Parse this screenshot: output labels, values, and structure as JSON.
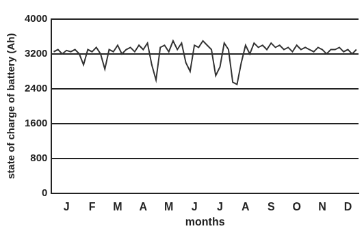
{
  "chart_data": {
    "type": "line",
    "x_label": "months",
    "y_label": "state of charge of battery (Ah)",
    "categories": [
      null,
      null,
      null,
      "J",
      null,
      null,
      null,
      null,
      null,
      "F",
      null,
      null,
      null,
      null,
      null,
      "M",
      null,
      null,
      null,
      null,
      null,
      "A",
      null,
      null,
      null,
      null,
      null,
      "M",
      null,
      null,
      null,
      null,
      null,
      "J",
      null,
      null,
      null,
      null,
      null,
      "J",
      null,
      null,
      null,
      null,
      null,
      "A",
      null,
      null,
      null,
      null,
      null,
      "S",
      null,
      null,
      null,
      null,
      null,
      "O",
      null,
      null,
      null,
      null,
      null,
      "N",
      null,
      null,
      null,
      null,
      null,
      "D",
      null,
      null
    ],
    "values": [
      3250,
      3300,
      3200,
      3280,
      3250,
      3300,
      3200,
      2950,
      3300,
      3250,
      3350,
      3200,
      2850,
      3300,
      3250,
      3400,
      3200,
      3300,
      3350,
      3250,
      3400,
      3300,
      3450,
      2950,
      2600,
      3350,
      3400,
      3250,
      3500,
      3300,
      3450,
      3000,
      2800,
      3400,
      3350,
      3500,
      3400,
      3300,
      2700,
      2900,
      3450,
      3300,
      2550,
      2500,
      3000,
      3400,
      3200,
      3450,
      3350,
      3400,
      3300,
      3450,
      3350,
      3400,
      3300,
      3350,
      3250,
      3400,
      3300,
      3350,
      3300,
      3250,
      3350,
      3300,
      3200,
      3300,
      3300,
      3350,
      3250,
      3300,
      3200,
      3300
    ],
    "color": "#333333",
    "ylim": [
      0,
      4000
    ],
    "yticks": [
      0,
      800,
      1600,
      2400,
      3200,
      4000
    ],
    "grid": true
  }
}
